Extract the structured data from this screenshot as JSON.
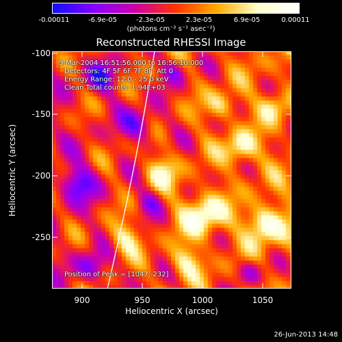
{
  "colorbar": {
    "ticks": [
      "-0.00011",
      "-6.9e-05",
      "-2.3e-05",
      "2.3e-05",
      "6.9e-05",
      "0.00011"
    ],
    "units": "(photons cm⁻² s⁻¹ asec⁻²)",
    "colors": [
      "#1010ff",
      "#8800ff",
      "#cc00aa",
      "#ff3300",
      "#ffaa00",
      "#ffffcc",
      "#ffffff"
    ]
  },
  "title": "Reconstructed RHESSI Image",
  "annotations": {
    "time_range": "9-Mar-2004 16:51:56.000 to 16:56:10.000",
    "detectors": "Detectors: 4F 5F 6F 7F 8F, Att 0",
    "energy_range": "Energy Range: 12.0 - 25.0 keV",
    "algorithm": "Clean    Total counts: 1.94E+03",
    "peak": "Position of Peak = [1047,-232]"
  },
  "axes": {
    "xlabel": "Heliocentric X (arcsec)",
    "ylabel": "Heliocentric Y (arcsec)",
    "xticks": [
      "900",
      "950",
      "1000",
      "1050"
    ],
    "yticks": [
      "-100",
      "-150",
      "-200",
      "-250"
    ],
    "xlim": [
      877,
      1072
    ],
    "ylim": [
      -290,
      -97
    ]
  },
  "footer": "26-Jun-2013 14:48"
}
